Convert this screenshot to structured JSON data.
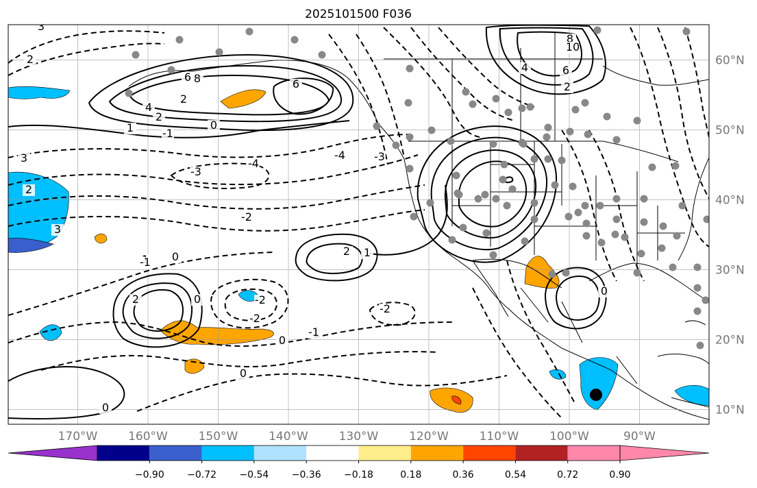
{
  "title": "2025101500 F036",
  "lon_labels": [
    "170°W",
    "160°W",
    "150°W",
    "140°W",
    "130°W",
    "120°W",
    "110°W",
    "100°W",
    "90°W"
  ],
  "lat_labels": [
    "60°N",
    "50°N",
    "40°N",
    "30°N",
    "20°N",
    "10°N"
  ],
  "colorbar": {
    "colors": [
      "#9932cc",
      "#00008b",
      "#3a5fcd",
      "#00bfff",
      "#b0e2ff",
      "#ffffff",
      "#ffec8b",
      "#ffa500",
      "#ff4500",
      "#b22222",
      "#ff88aa",
      "#ff88aa"
    ],
    "tick_labels": [
      "−0.90",
      "−0.72",
      "−0.54",
      "−0.36",
      "−0.18",
      "0.18",
      "0.36",
      "0.54",
      "0.72",
      "0.90"
    ]
  },
  "contour_labels": [
    {
      "text": "3"
    },
    {
      "text": "2"
    },
    {
      "text": "8"
    },
    {
      "text": "6"
    },
    {
      "text": "4"
    },
    {
      "text": "2"
    },
    {
      "text": "1"
    },
    {
      "text": "0"
    },
    {
      "text": "-1"
    },
    {
      "text": "-2"
    },
    {
      "text": "-3"
    },
    {
      "text": "-4"
    },
    {
      "text": "8"
    },
    {
      "text": "10"
    },
    {
      "text": "6"
    },
    {
      "text": "4"
    },
    {
      "text": "2"
    },
    {
      "text": "-4"
    },
    {
      "text": "-3"
    },
    {
      "text": "3"
    },
    {
      "text": "2"
    },
    {
      "text": "6"
    },
    {
      "text": "2"
    },
    {
      "text": "1"
    },
    {
      "text": "0"
    },
    {
      "text": "-1"
    },
    {
      "text": "-2"
    },
    {
      "text": "0"
    },
    {
      "text": "-2"
    },
    {
      "text": "0"
    },
    {
      "text": "-1"
    },
    {
      "text": "1"
    },
    {
      "text": "0"
    },
    {
      "text": "0"
    },
    {
      "text": "2"
    },
    {
      "text": "-2"
    },
    {
      "text": "0"
    },
    {
      "text": "3"
    },
    {
      "text": "2"
    }
  ]
}
